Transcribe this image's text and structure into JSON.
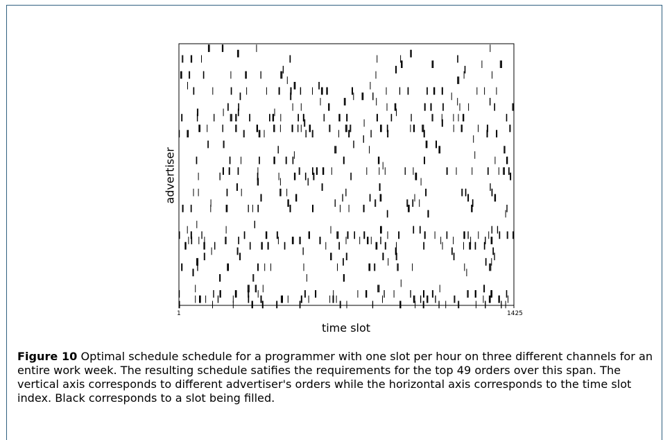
{
  "chart_data": {
    "type": "heatmap",
    "xlabel": "time slot",
    "ylabel": "advertiser",
    "x_tick_labels": [
      "1",
      "1425"
    ],
    "xlim": [
      1,
      1425
    ],
    "rows": 49,
    "cell_color": "#000000",
    "background_color": "#ffffff",
    "seed": 1425
  },
  "caption": {
    "label": "Figure 10",
    "text": " Optimal schedule schedule for a programmer with one slot per hour on three different channels for an entire work week. The resulting schedule satifies the requirements for the top 49 orders over this span. The vertical axis corresponds to different advertiser's orders while the horizontal axis corresponds to the time slot index. Black corresponds to a slot being filled."
  }
}
